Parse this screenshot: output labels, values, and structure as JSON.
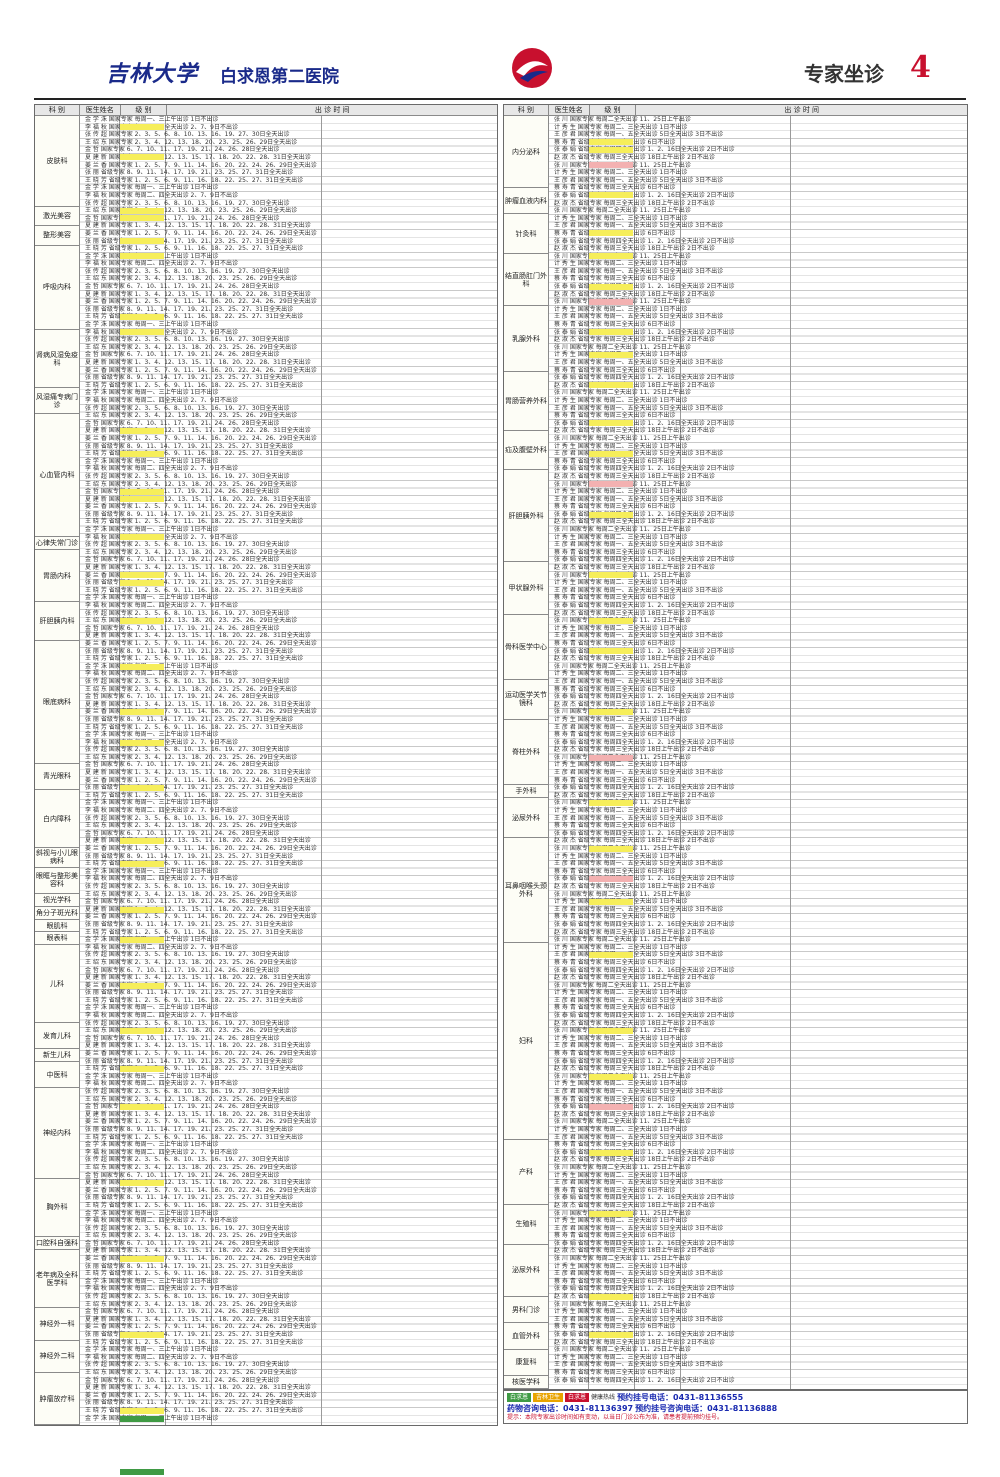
{
  "header": {
    "calligraphy": "吉林大学",
    "hospital": "白求恩第二医院",
    "section_title": "专家坐诊",
    "page_number": "4"
  },
  "table_headers": {
    "dept": "科 别",
    "doctor": "医生姓名",
    "level": "级 别",
    "schedule": "出 诊 时 间"
  },
  "left_departments": [
    "皮肤科",
    "激光美容",
    "整形美容",
    "呼吸内科",
    "肾病风湿免疫科",
    "风湿痛专病门诊",
    "心血管内科",
    "心律失常门诊",
    "胃肠内科",
    "肝胆胰内科",
    "眼底病科",
    "青光眼科",
    "白内障科",
    "斜视与小儿眼病科",
    "眼眶与整形美容科",
    "视光学科",
    "角分子斑光科",
    "眼肌科",
    "眼表科",
    "儿科",
    "发育儿科",
    "新生儿科",
    "中医科",
    "神经内科",
    "胸外科",
    "口腔科自强科",
    "老年病及全科医学科",
    "神经外一科",
    "神经外二科",
    "肿瘤放疗科"
  ],
  "right_departments": [
    "内分泌科",
    "肿瘤血液内科",
    "针灸科",
    "结直肠肛门外科",
    "乳腺外科",
    "胃肠营养外科",
    "疝及腹壁外科",
    "肝胆胰外科",
    "甲状腺外科",
    "骨科医学中心",
    "运动医学关节镜科",
    "脊柱外科",
    "手外科",
    "泌尿外科",
    "耳鼻咽喉头颈外科",
    "妇科",
    "产科",
    "生殖科",
    "泌尿外科",
    "男科门诊",
    "血管外科",
    "康复科",
    "核医学科"
  ],
  "sample_rows": [
    "金 学 洙   国家专家   每周一、三上午出诊   1日不出诊",
    "李 福 秋   国家专家   每周二、四全天出诊   2、7、9日不出诊",
    "张 传 超   国家专家   2、3、5、6、8、10、13、16、19、27、30日全天出诊",
    "王 绍 东   国家专家   2、3、4、12、13、18、20、23、25、26、29日全天出诊",
    "金    哲   国家专家   6、7、10、11、17、19、21、24、26、28日全天出诊",
    "夏 建 新   国家专家   1、3、4、12、13、15、17、18、20、22、28、31日全天出诊",
    "姜 兰 香   国家专家   1、2、5、7、9、11、14、16、20、22、24、26、29日全天出诊",
    "张    丽   省级专家   8、9、11、14、17、19、21、23、25、27、31日全天出诊",
    "王 晓 芳   省级专家   1、2、5、6、9、11、16、18、22、25、27、31日全天出诊"
  ],
  "right_sample_rows": [
    "张    川   国家专家   每周二全天出诊   11、25日上午出诊",
    "计 秀 生   国家专家   每周二、三全天出诊   1日不出诊",
    "王 彦 君   国家专家   每周一、五全天出诊   5日全天出诊   3日不出诊",
    "蔡 寿 青   省级专家   每周三全天出诊   6日不出诊",
    "张 泰 娟   省级专家   每周四全天出诊   1、2、16日全天出诊   2日不出诊",
    "赵 淑 杰   省级专家   每周三全天出诊   18日上午出诊   2日不出诊"
  ],
  "footer": {
    "badge1": "白求恩",
    "badge2": "吉林卫生",
    "badge3": "白求恩",
    "label": "健康热线",
    "phone1": "预约挂号电话：0431-81136555",
    "phone2": "药物咨询电话：0431-81136397",
    "phone3": "预约挂号咨询电话：0431-81136888",
    "line1": "提示：本院专家出诊时间如有变动，以当日门诊公布为准，请患者提前预约挂号。"
  }
}
